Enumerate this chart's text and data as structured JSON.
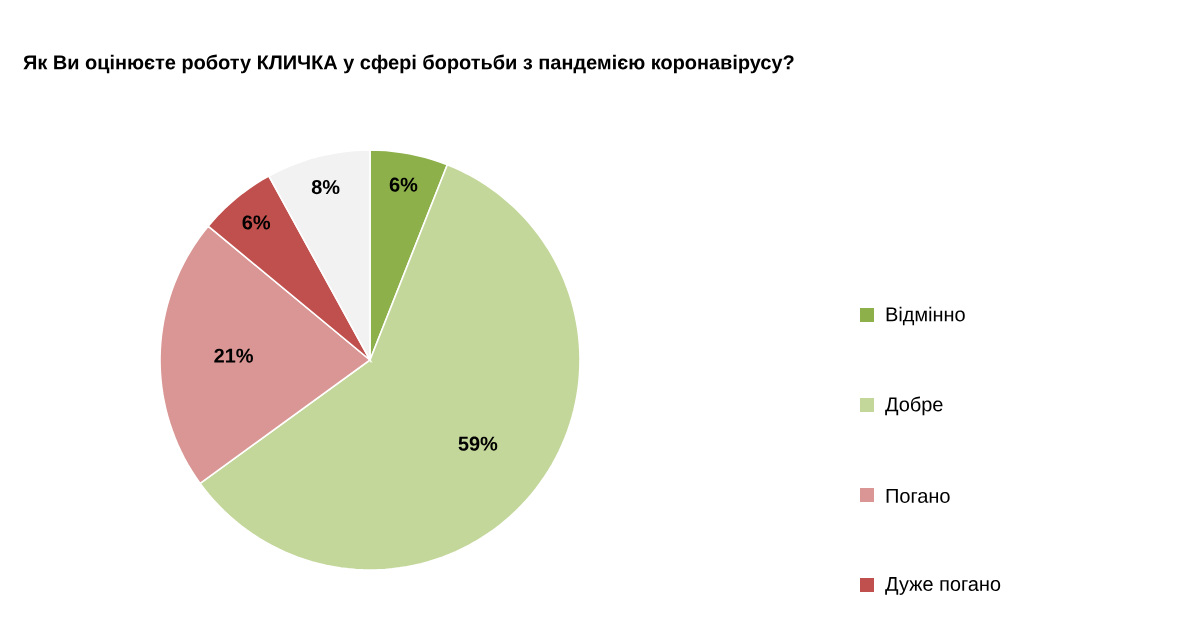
{
  "chart_data": {
    "type": "pie",
    "title": "Як Ви оцінюєте роботу КЛИЧКА у сфері боротьби з пандемією коронавірусу?",
    "categories": [
      "Відмінно",
      "Добре",
      "Погано",
      "Дуже погано",
      null
    ],
    "values": [
      6,
      59,
      21,
      6,
      8
    ],
    "value_labels": [
      "6%",
      "59%",
      "21%",
      "6%",
      "8%"
    ],
    "colors": [
      "#8db04a",
      "#c4d79b",
      "#d99694",
      "#c0504d",
      "#f2f2f2"
    ],
    "legend": "right"
  }
}
